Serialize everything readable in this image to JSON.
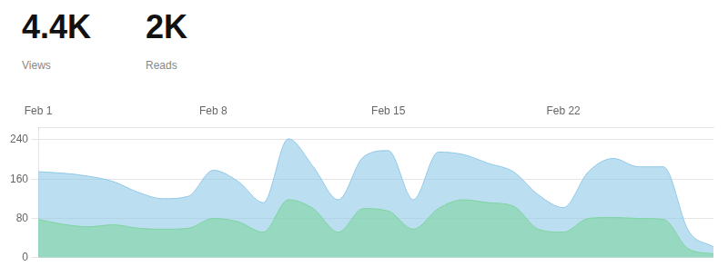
{
  "chart_data": {
    "type": "area",
    "categories": [
      "Feb 1",
      null,
      null,
      null,
      null,
      null,
      null,
      "Feb 8",
      null,
      null,
      null,
      null,
      null,
      null,
      "Feb 15",
      null,
      null,
      null,
      null,
      null,
      null,
      "Feb 22",
      null,
      null,
      null,
      null,
      null,
      null
    ],
    "series": [
      {
        "name": "Views",
        "annotation": "4.4K",
        "color": "#90c8e8",
        "values": [
          175,
          172,
          166,
          155,
          133,
          120,
          125,
          178,
          155,
          112,
          242,
          185,
          118,
          205,
          218,
          118,
          215,
          210,
          192,
          175,
          128,
          102,
          175,
          202,
          185,
          185,
          55,
          22
        ]
      },
      {
        "name": "Reads",
        "annotation": "2K",
        "color": "#7ed4a0",
        "values": [
          78,
          68,
          63,
          67,
          60,
          58,
          60,
          80,
          73,
          52,
          118,
          100,
          52,
          100,
          95,
          58,
          100,
          118,
          112,
          105,
          58,
          52,
          80,
          82,
          80,
          78,
          18,
          8
        ]
      }
    ],
    "ylim": [
      0,
      265
    ],
    "yticks": [
      0,
      80,
      160,
      240
    ],
    "grid": true
  }
}
